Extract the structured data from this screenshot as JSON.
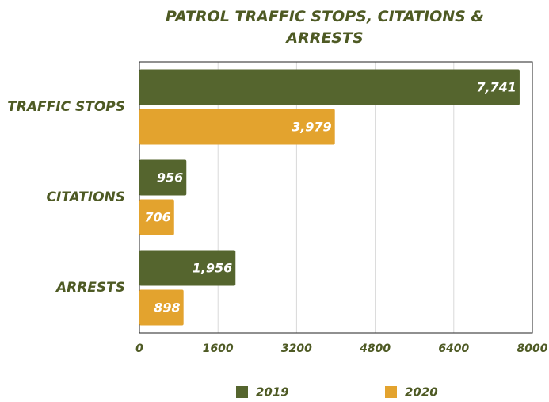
{
  "chart_data": {
    "type": "bar",
    "orientation": "horizontal",
    "title": "PATROL TRAFFIC STOPS, CITATIONS & ARRESTS",
    "categories": [
      "TRAFFIC STOPS",
      "CITATIONS",
      "ARRESTS"
    ],
    "series": [
      {
        "name": "2019",
        "color": "#55652e",
        "values": [
          7741,
          956,
          1956
        ],
        "value_labels": [
          "7,741",
          "956",
          "1,956"
        ]
      },
      {
        "name": "2020",
        "color": "#e3a32e",
        "values": [
          3979,
          706,
          898
        ],
        "value_labels": [
          "3,979",
          "706",
          "898"
        ]
      }
    ],
    "xlim": [
      0,
      8000
    ],
    "xticks": [
      0,
      1600,
      3200,
      4800,
      6400,
      8000
    ],
    "grid": true,
    "legend": "bottom"
  }
}
